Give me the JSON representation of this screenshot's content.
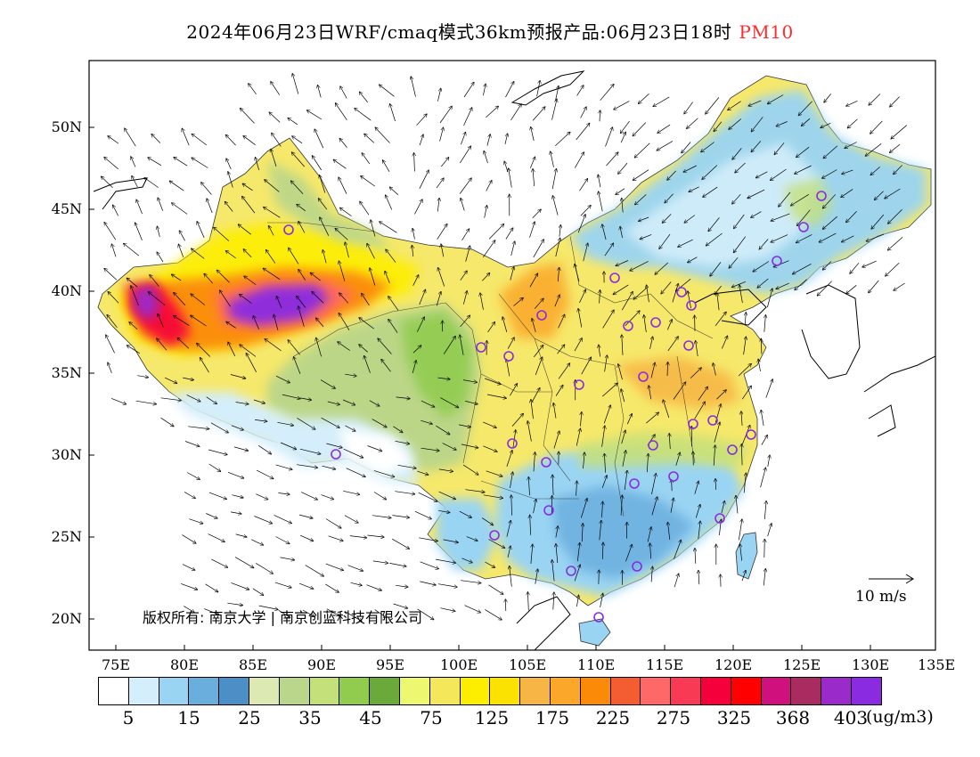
{
  "title": "2024年06月23日WRF/cmaq模式36km预报产品:06月23日18时",
  "product": "PM10",
  "lon_labels": [
    "75E",
    "80E",
    "85E",
    "90E",
    "95E",
    "100E",
    "105E",
    "110E",
    "115E",
    "120E",
    "125E",
    "130E",
    "135E"
  ],
  "lat_labels": [
    "50N",
    "45N",
    "40N",
    "35N",
    "30N",
    "25N",
    "20N"
  ],
  "copyright": "版权所有: 南京大学 | 南京创蓝科技有限公司",
  "wind_scale": "10 m/s",
  "units": "(ug/m3)",
  "colorbar_labels": [
    "5",
    "15",
    "25",
    "35",
    "45",
    "75",
    "125",
    "175",
    "225",
    "275",
    "325",
    "368",
    "403"
  ],
  "colors": [
    "#ffffff",
    "#d4eefb",
    "#9ad4f3",
    "#6aaede",
    "#4c8fc6",
    "#dde9b3",
    "#b9d68a",
    "#c4e07a",
    "#91cc4f",
    "#6aa93a",
    "#eef770",
    "#f4e75a",
    "#fdee00",
    "#fbe200",
    "#f7b545",
    "#fba82a",
    "#fb8a08",
    "#f45c32",
    "#fe6868",
    "#f83a55",
    "#f5003b",
    "#ff0000",
    "#d0107c",
    "#aa2b5f",
    "#9a2bca",
    "#8a2be2"
  ]
}
